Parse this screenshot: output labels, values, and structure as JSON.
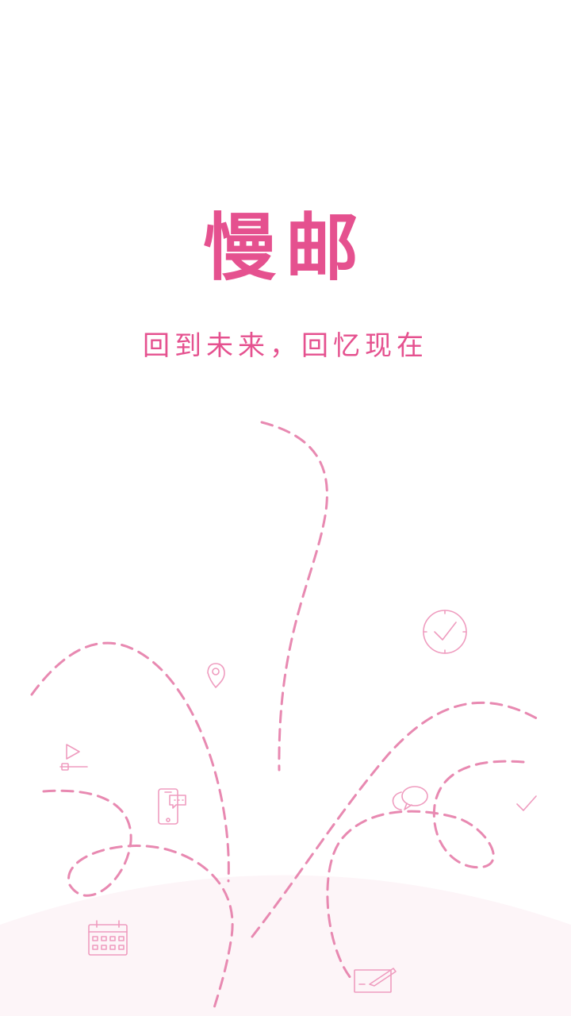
{
  "splash": {
    "app_name": "慢邮",
    "slogan": "回到未来，回忆现在"
  },
  "colors": {
    "brand_pink": "#e5518f",
    "dash_pink": "#e889b1",
    "icon_pink": "#ef9cbf",
    "ground": "#fdf5f8",
    "background": "#ffffff"
  },
  "decor_icons": [
    "clock-icon",
    "location-pin-icon",
    "play-slider-icon",
    "phone-chat-icon",
    "chat-bubbles-icon",
    "checkmark-icon",
    "calendar-icon",
    "write-note-icon"
  ]
}
